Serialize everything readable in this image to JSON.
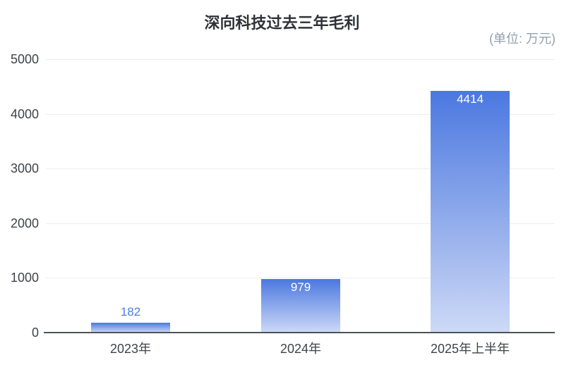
{
  "chart_data": {
    "type": "bar",
    "title": "深向科技过去三年毛利",
    "unit_label": "(单位: 万元)",
    "categories": [
      "2023年",
      "2024年",
      "2025年上半年"
    ],
    "values": [
      182,
      979,
      4414
    ],
    "value_labels": [
      "182",
      "979",
      "4414"
    ],
    "xlabel": "",
    "ylabel": "",
    "ylim": [
      0,
      5000
    ],
    "yticks": [
      0,
      1000,
      2000,
      3000,
      4000,
      5000
    ],
    "grid": true,
    "legend_position": "none",
    "colors": {
      "bar_gradient_top": "#4b78e0",
      "bar_gradient_bottom": "#cdd9f6",
      "value_label_outside": "#4d7ce2",
      "value_label_inside": "#ffffff",
      "grid_line": "#eceef2",
      "axis_line": "#4d5358",
      "tick_text": "#3f4347",
      "title_text": "#2f3338",
      "unit_text": "#94a0ae",
      "background": "#ffffff"
    }
  }
}
